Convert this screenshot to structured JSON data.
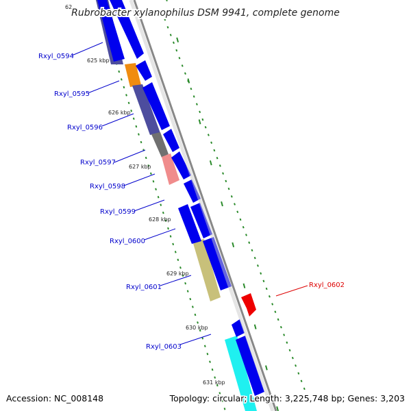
{
  "title": "Rubrobacter xylanophilus DSM 9941, complete genome",
  "accession": "Accession: NC_008148",
  "summary": "Topology: circular; Length: 3,225,748 bp; Genes: 3,203",
  "ruler": {
    "partial_label": "62",
    "kbp_labels": [
      "625 kbp",
      "626 kbp",
      "627 kbp",
      "628 kbp",
      "629 kbp",
      "630 kbp",
      "631 kbp"
    ]
  },
  "genes": [
    {
      "id": "Rxyl_0594",
      "color": "#0000cc"
    },
    {
      "id": "Rxyl_0595",
      "color": "#0000cc"
    },
    {
      "id": "Rxyl_0596",
      "color": "#0000cc"
    },
    {
      "id": "Rxyl_0597",
      "color": "#0000cc"
    },
    {
      "id": "Rxyl_0598",
      "color": "#0000cc"
    },
    {
      "id": "Rxyl_0599",
      "color": "#0000cc"
    },
    {
      "id": "Rxyl_0600",
      "color": "#0000cc"
    },
    {
      "id": "Rxyl_0601",
      "color": "#0000cc"
    },
    {
      "id": "Rxyl_0602",
      "color": "#dd0000"
    },
    {
      "id": "Rxyl_0603",
      "color": "#0000cc"
    }
  ],
  "colors": {
    "cds": "#0000ee",
    "cds_reverse": "#ee0000",
    "backbone": "#888888",
    "ruler_tick": "#2a8a2a",
    "cog_slate": "#4d4d9e",
    "cog_orange": "#f08c10",
    "cog_gray": "#707070",
    "cog_pink": "#f08c8c",
    "cog_khaki": "#c8c07a",
    "cog_cyan": "#1ff0f0"
  }
}
